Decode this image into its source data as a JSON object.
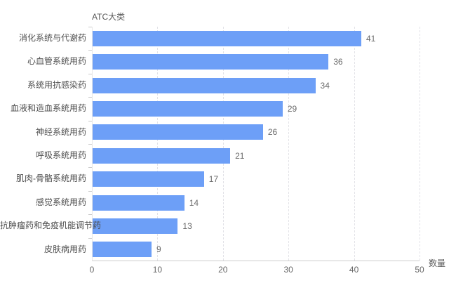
{
  "chart_data": {
    "type": "bar",
    "orientation": "horizontal",
    "title": "ATC大类",
    "xlabel": "数量",
    "categories": [
      "消化系统与代谢药",
      "心血管系统用药",
      "系统用抗感染药",
      "血液和造血系统用药",
      "神经系统用药",
      "呼吸系统用药",
      "肌肉-骨骼系统用药",
      "感觉系统用药",
      "抗肿瘤药和免疫机能调节药",
      "皮肤病用药"
    ],
    "values": [
      41,
      36,
      34,
      29,
      26,
      21,
      17,
      14,
      13,
      9
    ],
    "xlim": [
      0,
      50
    ],
    "x_ticks": [
      0,
      10,
      20,
      30,
      40,
      50
    ],
    "grid": true,
    "legend": "none",
    "bar_color": "#6D9FF7",
    "value_label_color": "#6b6b6b",
    "category_label_color": "#4d4d4d",
    "axis_line_color": "#cccccc",
    "gridline_color": "#e2e2e7"
  }
}
